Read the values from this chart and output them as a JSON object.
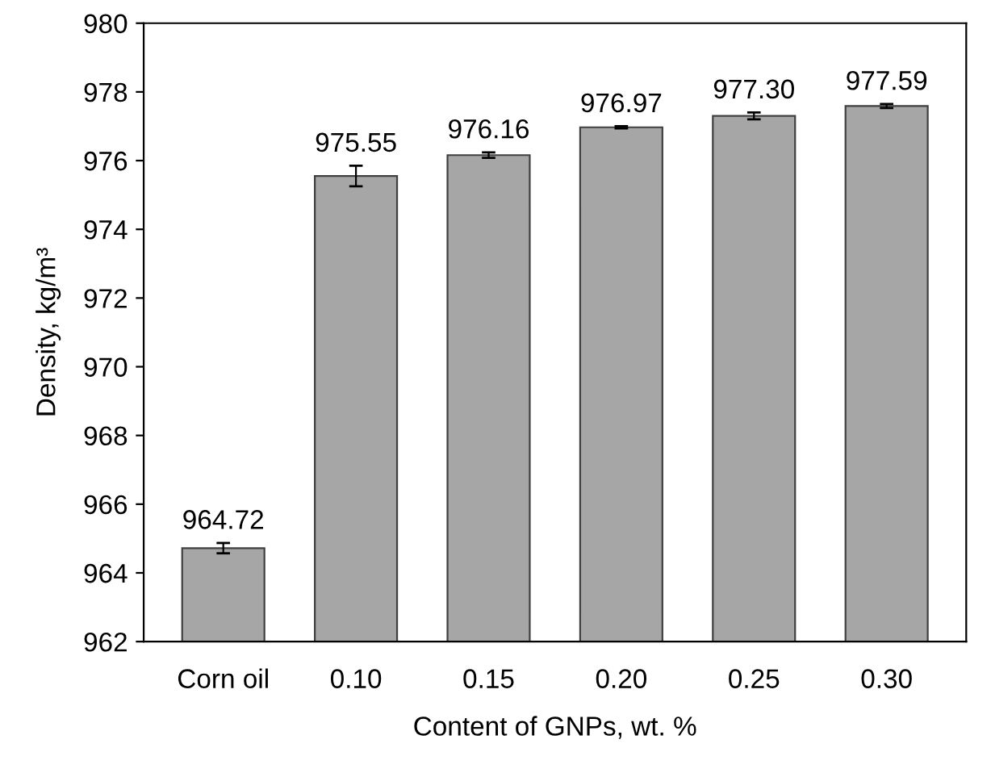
{
  "chart_data": {
    "type": "bar",
    "categories": [
      "Corn oil",
      "0.10",
      "0.15",
      "0.20",
      "0.25",
      "0.30"
    ],
    "values": [
      964.72,
      975.55,
      976.16,
      976.97,
      977.3,
      977.59
    ],
    "errors": [
      0.15,
      0.3,
      0.08,
      0.03,
      0.1,
      0.06
    ],
    "color": "#a6a6a6",
    "value_labels": [
      "964.72",
      "975.55",
      "976.16",
      "976.97",
      "977.30",
      "977.59"
    ],
    "xlabel": "Content of GNPs, wt. %",
    "ylabel": "Density, kg/m³",
    "ylim": [
      962,
      980
    ],
    "yticks": [
      962,
      964,
      966,
      968,
      970,
      972,
      974,
      976,
      978,
      980
    ],
    "grid": false
  }
}
